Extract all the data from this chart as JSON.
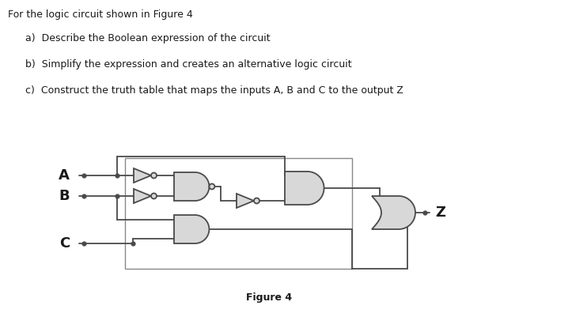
{
  "title": "For the logic circuit shown in Figure 4",
  "items": [
    "a)  Describe the Boolean expression of the circuit",
    "b)  Simplify the expression and creates an alternative logic circuit",
    "c)  Construct the truth table that maps the inputs A, B and C to the output Z"
  ],
  "figure_label": "Figure 4",
  "bg": "#ffffff",
  "wc": "#4a4a4a",
  "gf": "#d8d8d8",
  "ge": "#4a4a4a",
  "lw": 1.3,
  "ds": 4.5,
  "text_color": "#1a1a1a",
  "box_color": "#888888"
}
